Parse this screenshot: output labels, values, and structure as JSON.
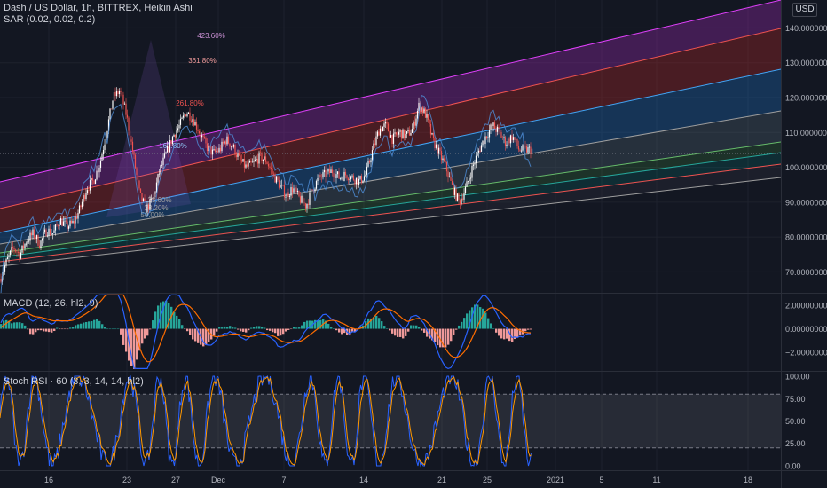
{
  "header": {
    "symbol": "Dash / US Dollar, 1h, BITTREX, Heikin Ashi",
    "indicator": "SAR (0.02, 0.02, 0.2)",
    "currency_button": "USD"
  },
  "macd_pane": {
    "label": "MACD (12, 26, hl2, 9)"
  },
  "rsi_pane": {
    "label": "Stoch RSI · 60 (3, 3, 14, 14, hl2)"
  },
  "x_axis_labels": [
    "16",
    "23",
    "27",
    "Dec",
    "7",
    "14",
    "21",
    "25",
    "2021",
    "5",
    "11",
    "18"
  ],
  "colors": {
    "background": "#131722",
    "bull": "#ffffff",
    "bear": "#ef5350",
    "macd_line": "#2962ff",
    "signal_line": "#ff6d00",
    "hist_up": "#26a69a",
    "hist_down": "#ef9a9a",
    "k_line": "#2962ff",
    "d_line": "#ff9800"
  },
  "chart_data": [
    {
      "type": "candlestick",
      "title": "Dash / US Dollar, 1h, BITTREX, Heikin Ashi",
      "y_ticks": [
        "70.00000000",
        "80.00000000",
        "90.00000000",
        "100.00000000",
        "110.00000000",
        "120.00000000",
        "130.00000000",
        "140.00000000"
      ],
      "ylim": [
        64,
        148
      ],
      "fib_levels": [
        "423.60%",
        "361.80%",
        "261.80%",
        "161.80%",
        "23.60%",
        "38.20%",
        "50.00%"
      ],
      "price_path": [
        {
          "x": 0,
          "y": 68
        },
        {
          "x": 5,
          "y": 73
        },
        {
          "x": 10,
          "y": 77
        },
        {
          "x": 15,
          "y": 75
        },
        {
          "x": 20,
          "y": 79
        },
        {
          "x": 25,
          "y": 81
        },
        {
          "x": 30,
          "y": 78
        },
        {
          "x": 35,
          "y": 82
        },
        {
          "x": 40,
          "y": 81
        },
        {
          "x": 45,
          "y": 85
        },
        {
          "x": 50,
          "y": 83
        },
        {
          "x": 55,
          "y": 84
        },
        {
          "x": 60,
          "y": 88
        },
        {
          "x": 65,
          "y": 94
        },
        {
          "x": 70,
          "y": 96
        },
        {
          "x": 75,
          "y": 101
        },
        {
          "x": 80,
          "y": 110
        },
        {
          "x": 85,
          "y": 120
        },
        {
          "x": 90,
          "y": 122
        },
        {
          "x": 95,
          "y": 115
        },
        {
          "x": 100,
          "y": 104
        },
        {
          "x": 105,
          "y": 92
        },
        {
          "x": 110,
          "y": 88
        },
        {
          "x": 115,
          "y": 91
        },
        {
          "x": 120,
          "y": 99
        },
        {
          "x": 125,
          "y": 104
        },
        {
          "x": 130,
          "y": 109
        },
        {
          "x": 135,
          "y": 112
        },
        {
          "x": 140,
          "y": 116
        },
        {
          "x": 145,
          "y": 114
        },
        {
          "x": 150,
          "y": 110
        },
        {
          "x": 155,
          "y": 106
        },
        {
          "x": 160,
          "y": 104
        },
        {
          "x": 165,
          "y": 105
        },
        {
          "x": 170,
          "y": 108
        },
        {
          "x": 175,
          "y": 106
        },
        {
          "x": 180,
          "y": 102
        },
        {
          "x": 185,
          "y": 100
        },
        {
          "x": 190,
          "y": 101
        },
        {
          "x": 195,
          "y": 103
        },
        {
          "x": 200,
          "y": 102
        },
        {
          "x": 205,
          "y": 98
        },
        {
          "x": 210,
          "y": 95
        },
        {
          "x": 215,
          "y": 92
        },
        {
          "x": 220,
          "y": 94
        },
        {
          "x": 225,
          "y": 91
        },
        {
          "x": 230,
          "y": 89
        },
        {
          "x": 235,
          "y": 94
        },
        {
          "x": 240,
          "y": 97
        },
        {
          "x": 245,
          "y": 98
        },
        {
          "x": 250,
          "y": 99
        },
        {
          "x": 255,
          "y": 97
        },
        {
          "x": 260,
          "y": 98
        },
        {
          "x": 265,
          "y": 97
        },
        {
          "x": 270,
          "y": 96
        },
        {
          "x": 275,
          "y": 98
        },
        {
          "x": 280,
          "y": 105
        },
        {
          "x": 285,
          "y": 111
        },
        {
          "x": 290,
          "y": 112
        },
        {
          "x": 295,
          "y": 108
        },
        {
          "x": 300,
          "y": 110
        },
        {
          "x": 305,
          "y": 109
        },
        {
          "x": 310,
          "y": 111
        },
        {
          "x": 315,
          "y": 118
        },
        {
          "x": 320,
          "y": 115
        },
        {
          "x": 325,
          "y": 108
        },
        {
          "x": 330,
          "y": 104
        },
        {
          "x": 335,
          "y": 100
        },
        {
          "x": 340,
          "y": 94
        },
        {
          "x": 345,
          "y": 90
        },
        {
          "x": 350,
          "y": 94
        },
        {
          "x": 355,
          "y": 100
        },
        {
          "x": 360,
          "y": 105
        },
        {
          "x": 365,
          "y": 109
        },
        {
          "x": 370,
          "y": 112
        },
        {
          "x": 375,
          "y": 110
        },
        {
          "x": 380,
          "y": 107
        },
        {
          "x": 385,
          "y": 109
        },
        {
          "x": 390,
          "y": 105
        }
      ],
      "x_range": [
        0,
        400
      ],
      "visible_range": [
        0,
        570
      ]
    },
    {
      "type": "line",
      "title": "MACD (12, 26, hl2, 9)",
      "y_ticks": [
        "2.00000000",
        "0.00000000",
        "−2.00000000"
      ],
      "ylim": [
        -3.6,
        3.0
      ]
    },
    {
      "type": "line",
      "title": "Stoch RSI · 60 (3, 3, 14, 14, hl2)",
      "y_ticks": [
        "100.00",
        "75.00",
        "50.00",
        "25.00",
        "0.00"
      ],
      "ylim": [
        -5,
        105
      ],
      "bands": [
        20,
        80
      ]
    }
  ]
}
